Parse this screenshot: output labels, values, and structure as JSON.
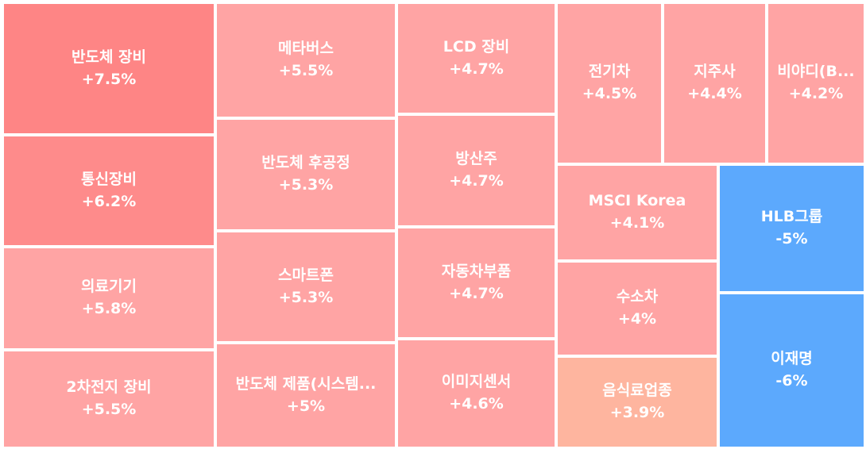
{
  "chart_data": {
    "type": "treemap",
    "tiles": [
      {
        "name": "반도체 장비",
        "label": "+7.5%",
        "value": 7.5,
        "color": "#fe8585"
      },
      {
        "name": "통신장비",
        "label": "+6.2%",
        "value": 6.2,
        "color": "#fe8b8b"
      },
      {
        "name": "의료기기",
        "label": "+5.8%",
        "value": 5.8,
        "color": "#ffa4a4"
      },
      {
        "name": "2차전지 장비",
        "label": "+5.5%",
        "value": 5.5,
        "color": "#ffa4a4"
      },
      {
        "name": "메타버스",
        "label": "+5.5%",
        "value": 5.5,
        "color": "#ffa4a4"
      },
      {
        "name": "반도체 후공정",
        "label": "+5.3%",
        "value": 5.3,
        "color": "#ffa4a4"
      },
      {
        "name": "스마트폰",
        "label": "+5.3%",
        "value": 5.3,
        "color": "#ffa4a4"
      },
      {
        "name": "반도체 제품(시스템...",
        "label": "+5%",
        "value": 5.0,
        "color": "#ffa4a4"
      },
      {
        "name": "LCD 장비",
        "label": "+4.7%",
        "value": 4.7,
        "color": "#ffa4a4"
      },
      {
        "name": "방산주",
        "label": "+4.7%",
        "value": 4.7,
        "color": "#ffa4a4"
      },
      {
        "name": "자동차부품",
        "label": "+4.7%",
        "value": 4.7,
        "color": "#ffa4a4"
      },
      {
        "name": "이미지센서",
        "label": "+4.6%",
        "value": 4.6,
        "color": "#ffa4a4"
      },
      {
        "name": "전기차",
        "label": "+4.5%",
        "value": 4.5,
        "color": "#ffa4a4"
      },
      {
        "name": "지주사",
        "label": "+4.4%",
        "value": 4.4,
        "color": "#ffa4a4"
      },
      {
        "name": "비야디(B...",
        "label": "+4.2%",
        "value": 4.2,
        "color": "#ffa4a4"
      },
      {
        "name": "MSCI Korea",
        "label": "+4.1%",
        "value": 4.1,
        "color": "#ffa4a4"
      },
      {
        "name": "수소차",
        "label": "+4%",
        "value": 4.0,
        "color": "#ffa4a4"
      },
      {
        "name": "음식료업종",
        "label": "+3.9%",
        "value": 3.9,
        "color": "#feb59f"
      },
      {
        "name": "HLB그룹",
        "label": "-5%",
        "value": -5.0,
        "color": "#5ca9fd"
      },
      {
        "name": "이재명",
        "label": "-6%",
        "value": -6.0,
        "color": "#5ca9fd"
      }
    ]
  }
}
